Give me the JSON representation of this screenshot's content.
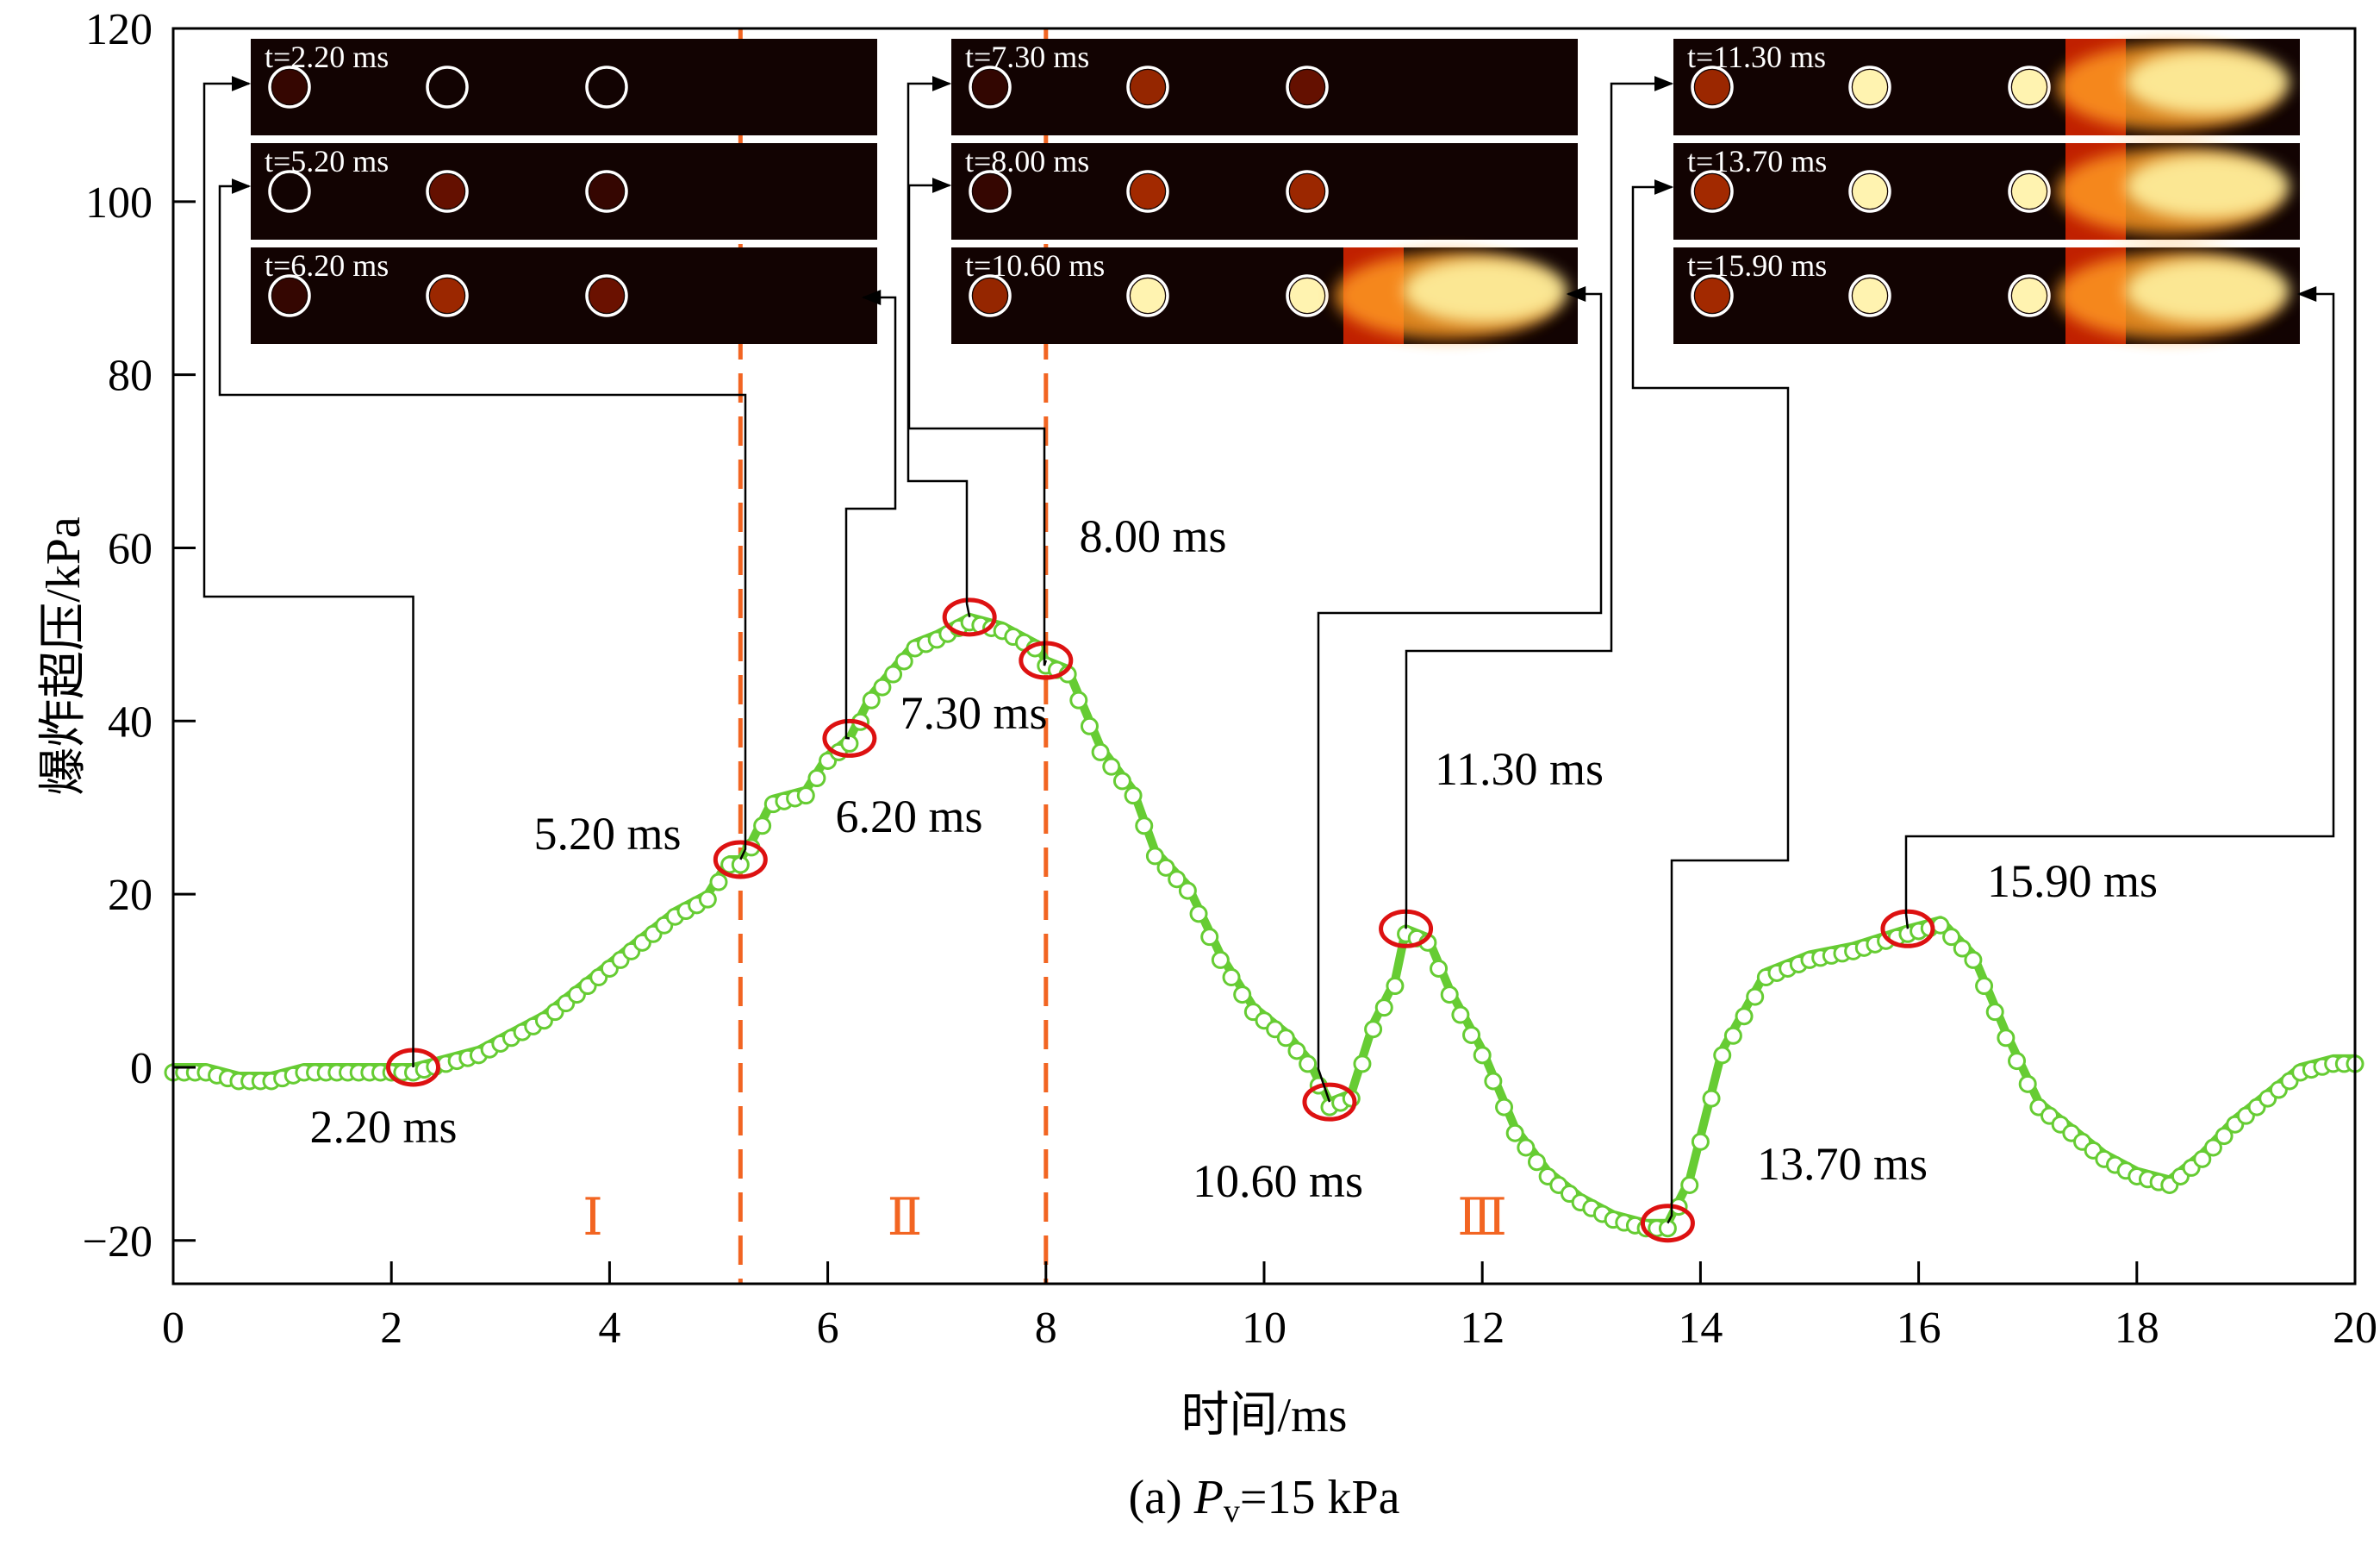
{
  "caption": {
    "prefix": "(a) ",
    "var": "P",
    "sub": "v",
    "rest": "=15 kPa"
  },
  "chart_data": {
    "type": "line",
    "xlabel": "时间/ms",
    "ylabel": "爆炸超压/kPa",
    "xlim": [
      0,
      20
    ],
    "ylim": [
      -25,
      120
    ],
    "xticks": [
      0,
      2,
      4,
      6,
      8,
      10,
      12,
      14,
      16,
      18,
      20
    ],
    "yticks": [
      -20,
      0,
      20,
      40,
      60,
      80,
      100,
      120
    ],
    "series": [
      {
        "color": "#66cc33",
        "x": [
          0,
          0.3,
          0.6,
          0.9,
          1.2,
          1.5,
          1.8,
          2.1,
          2.2,
          2.5,
          2.8,
          3.1,
          3.4,
          3.7,
          4.0,
          4.3,
          4.6,
          4.9,
          5.1,
          5.2,
          5.3,
          5.5,
          5.8,
          6.0,
          6.2,
          6.4,
          6.6,
          6.8,
          7.0,
          7.3,
          7.6,
          7.9,
          8.0,
          8.2,
          8.5,
          8.8,
          9.0,
          9.3,
          9.6,
          9.9,
          10.2,
          10.4,
          10.6,
          10.8,
          11.0,
          11.2,
          11.3,
          11.5,
          11.7,
          12.0,
          12.3,
          12.6,
          12.9,
          13.2,
          13.5,
          13.7,
          13.9,
          14.2,
          14.6,
          15.0,
          15.4,
          15.9,
          16.2,
          16.5,
          16.8,
          17.1,
          17.4,
          17.7,
          18.0,
          18.3,
          18.6,
          18.9,
          19.2,
          19.5,
          19.8,
          20.0
        ],
        "y": [
          0,
          0,
          -1,
          -1,
          0,
          0,
          0,
          0,
          0,
          1,
          2,
          4,
          6,
          9,
          12,
          15,
          18,
          20,
          24,
          24,
          26,
          31,
          32,
          36,
          38,
          43,
          46,
          49,
          50,
          52,
          51,
          49,
          47,
          46,
          37,
          32,
          25,
          21,
          13,
          7,
          4,
          1,
          -4,
          -3,
          5,
          10,
          16,
          15,
          9,
          2,
          -7,
          -12,
          -15,
          -17,
          -18,
          -18,
          -13,
          2,
          11,
          13,
          14,
          16,
          17,
          13,
          4,
          -4,
          -7,
          -10,
          -12,
          -13,
          -10,
          -6,
          -3,
          0,
          1,
          1
        ]
      }
    ],
    "point_labels": [
      {
        "t": 2.2,
        "y": 0,
        "text": "2.20 ms"
      },
      {
        "t": 5.2,
        "y": 24,
        "text": "5.20 ms"
      },
      {
        "t": 6.2,
        "y": 38,
        "text": "6.20 ms"
      },
      {
        "t": 7.3,
        "y": 52,
        "text": "7.30 ms"
      },
      {
        "t": 8.0,
        "y": 47,
        "text": "8.00 ms"
      },
      {
        "t": 10.6,
        "y": -4,
        "text": "10.60 ms"
      },
      {
        "t": 11.3,
        "y": 16,
        "text": "11.30 ms"
      },
      {
        "t": 13.7,
        "y": -18,
        "text": "13.70 ms"
      },
      {
        "t": 15.9,
        "y": 16,
        "text": "15.90 ms"
      }
    ],
    "stage_boundaries": [
      5.2,
      8.0
    ],
    "stage_labels": [
      "Ⅰ",
      "Ⅱ",
      "Ⅲ"
    ],
    "stage_color": "#f26522",
    "marker_color": "#dd1111",
    "inset_frames": [
      {
        "label": "t=2.20 ms",
        "intensity": 0
      },
      {
        "label": "t=5.20 ms",
        "intensity": 0.1
      },
      {
        "label": "t=6.20 ms",
        "intensity": 0.25
      },
      {
        "label": "t=7.30 ms",
        "intensity": 0.2
      },
      {
        "label": "t=8.00 ms",
        "intensity": 0.3
      },
      {
        "label": "t=10.60 ms",
        "intensity": 0.8
      },
      {
        "label": "t=11.30 ms",
        "intensity": 0.9
      },
      {
        "label": "t=13.70 ms",
        "intensity": 1.0
      },
      {
        "label": "t=15.90 ms",
        "intensity": 1.0
      }
    ]
  }
}
